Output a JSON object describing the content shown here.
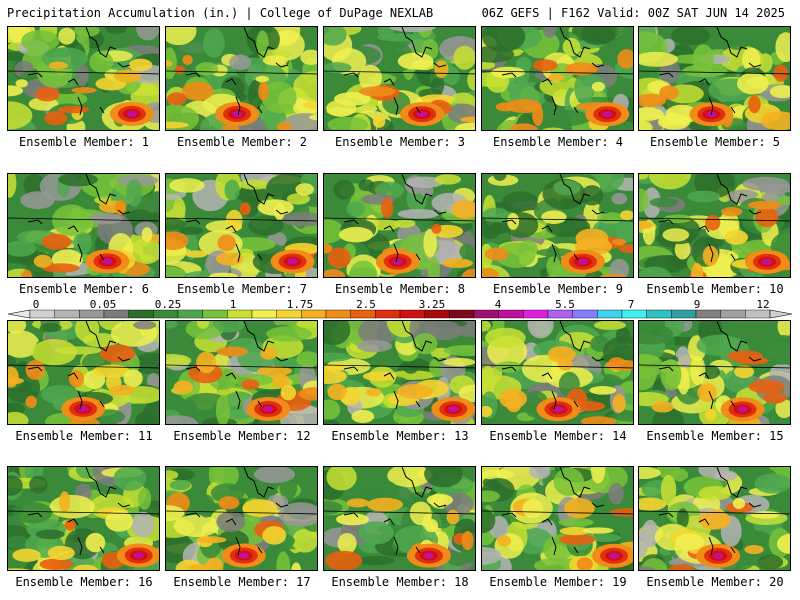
{
  "header": {
    "left": "Precipitation Accumulation (in.) | College of DuPage NEXLAB",
    "right": "06Z GEFS | F162 Valid: 00Z SAT JUN 14 2025"
  },
  "colorbar": {
    "labels": [
      "0",
      "0.05",
      "0.25",
      "1",
      "1.75",
      "2.5",
      "3.25",
      "4",
      "5.5",
      "7",
      "9",
      "12"
    ],
    "colors": [
      "#d0d0d0",
      "#b4b4b4",
      "#989898",
      "#7c7c7c",
      "#2c6e2c",
      "#3a8a3a",
      "#4fa84f",
      "#78c23a",
      "#c8e034",
      "#f0f050",
      "#f5d530",
      "#f5b020",
      "#f08c18",
      "#e86010",
      "#e03010",
      "#d01010",
      "#a80808",
      "#800818",
      "#a01070",
      "#c010a0",
      "#e020e0",
      "#b060f0",
      "#8080ff",
      "#40d0f0",
      "#40f0f0",
      "#30c0c0",
      "#30a0a0",
      "#808080",
      "#a0a0a0",
      "#c0c0c0"
    ]
  },
  "panels": [
    {
      "caption": "Ensemble Member: 1"
    },
    {
      "caption": "Ensemble Member: 2"
    },
    {
      "caption": "Ensemble Member: 3"
    },
    {
      "caption": "Ensemble Member: 4"
    },
    {
      "caption": "Ensemble Member: 5"
    },
    {
      "caption": "Ensemble Member: 6"
    },
    {
      "caption": "Ensemble Member: 7"
    },
    {
      "caption": "Ensemble Member: 8"
    },
    {
      "caption": "Ensemble Member: 9"
    },
    {
      "caption": "Ensemble Member: 10"
    },
    {
      "caption": "Ensemble Member: 11"
    },
    {
      "caption": "Ensemble Member: 12"
    },
    {
      "caption": "Ensemble Member: 13"
    },
    {
      "caption": "Ensemble Member: 14"
    },
    {
      "caption": "Ensemble Member: 15"
    },
    {
      "caption": "Ensemble Member: 16"
    },
    {
      "caption": "Ensemble Member: 17"
    },
    {
      "caption": "Ensemble Member: 18"
    },
    {
      "caption": "Ensemble Member: 19"
    },
    {
      "caption": "Ensemble Member: 20"
    }
  ]
}
